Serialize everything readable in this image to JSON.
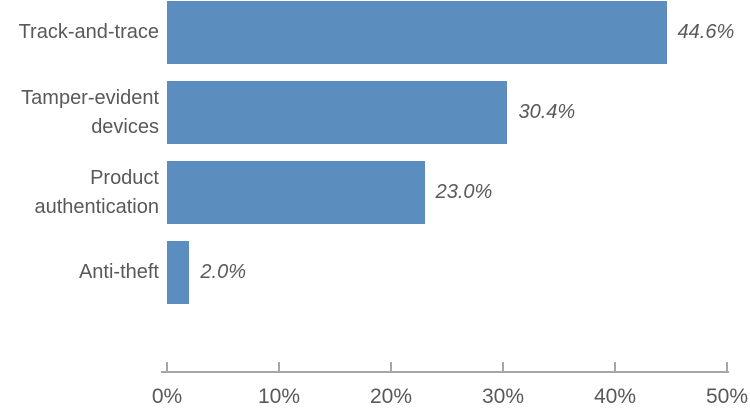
{
  "chart_data": {
    "type": "bar",
    "orientation": "horizontal",
    "title": "",
    "xlabel": "",
    "ylabel": "",
    "categories": [
      "Track-and-trace",
      "Tamper-evident devices",
      "Product authentication",
      "Anti-theft"
    ],
    "values": [
      44.6,
      30.4,
      23.0,
      2.0
    ],
    "value_labels": [
      "44.6%",
      "30.4%",
      "23.0%",
      "2.0%"
    ],
    "x_tick_labels": [
      "0%",
      "10%",
      "20%",
      "30%",
      "40%",
      "50%"
    ],
    "x_tick_values": [
      0,
      10,
      20,
      30,
      40,
      50
    ],
    "xlim": [
      0,
      50
    ],
    "grid": false,
    "legend": "none",
    "bar_color": "#5B8DBE",
    "text_color": "#595959",
    "axis_color": "#A6A6A6"
  }
}
